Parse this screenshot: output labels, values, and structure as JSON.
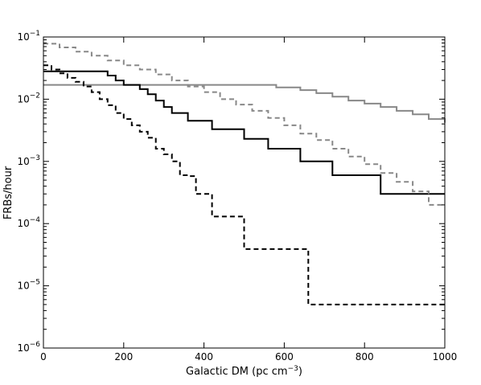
{
  "chart_data": {
    "type": "line",
    "title": "",
    "xlabel": "Galactic DM (pc cm",
    "xlabel_sup": "−3",
    "xlabel_close": ")",
    "ylabel": "FRBs/hour",
    "xlim": [
      0,
      1000
    ],
    "ylim": [
      1e-06,
      0.1
    ],
    "yscale": "log",
    "grid": false,
    "legend": "none",
    "x_ticks": [
      {
        "value": 0,
        "label": "0"
      },
      {
        "value": 200,
        "label": "200"
      },
      {
        "value": 400,
        "label": "400"
      },
      {
        "value": 600,
        "label": "600"
      },
      {
        "value": 800,
        "label": "800"
      },
      {
        "value": 1000,
        "label": "1000"
      }
    ],
    "y_ticks": [
      {
        "value": 1e-06,
        "base": "10",
        "exp": "−6"
      },
      {
        "value": 1e-05,
        "base": "10",
        "exp": "−5"
      },
      {
        "value": 0.0001,
        "base": "10",
        "exp": "−4"
      },
      {
        "value": 0.001,
        "base": "10",
        "exp": "−3"
      },
      {
        "value": 0.01,
        "base": "10",
        "exp": "−2"
      },
      {
        "value": 0.1,
        "base": "10",
        "exp": "−1"
      }
    ],
    "series": [
      {
        "color": "#888888",
        "dash": "solid",
        "x": [
          0,
          560,
          580,
          640,
          680,
          720,
          760,
          800,
          840,
          880,
          920,
          960,
          1000
        ],
        "y": [
          0.017,
          0.017,
          0.0155,
          0.014,
          0.0125,
          0.011,
          0.0095,
          0.0085,
          0.0075,
          0.0065,
          0.0057,
          0.0048,
          0.0042
        ]
      },
      {
        "color": "#000000",
        "dash": "solid",
        "x": [
          0,
          140,
          160,
          180,
          200,
          240,
          260,
          280,
          300,
          320,
          360,
          400,
          420,
          440,
          500,
          560,
          620,
          640,
          700,
          720,
          800,
          840,
          1000
        ],
        "y": [
          0.028,
          0.028,
          0.024,
          0.02,
          0.017,
          0.0145,
          0.012,
          0.0095,
          0.0075,
          0.006,
          0.0045,
          0.0045,
          0.0033,
          0.0033,
          0.0023,
          0.0016,
          0.0016,
          0.001,
          0.001,
          0.0006,
          0.0006,
          0.0003,
          0.0003
        ]
      },
      {
        "color": "#888888",
        "dash": "dashed",
        "x": [
          0,
          40,
          80,
          120,
          160,
          200,
          240,
          280,
          320,
          360,
          400,
          440,
          480,
          520,
          560,
          600,
          640,
          680,
          720,
          760,
          800,
          840,
          880,
          920,
          960,
          1000
        ],
        "y": [
          0.078,
          0.068,
          0.058,
          0.05,
          0.042,
          0.035,
          0.03,
          0.025,
          0.02,
          0.016,
          0.013,
          0.01,
          0.0082,
          0.0065,
          0.005,
          0.0038,
          0.0028,
          0.0022,
          0.0016,
          0.0012,
          0.0009,
          0.00065,
          0.00047,
          0.00033,
          0.0002,
          0.0002
        ]
      },
      {
        "color": "#000000",
        "dash": "dashed",
        "x": [
          0,
          20,
          40,
          60,
          80,
          100,
          120,
          140,
          160,
          180,
          200,
          220,
          240,
          260,
          280,
          300,
          320,
          340,
          360,
          380,
          400,
          420,
          440,
          460,
          480,
          500,
          520,
          560,
          600,
          640,
          660,
          1000
        ],
        "y": [
          0.035,
          0.03,
          0.026,
          0.022,
          0.019,
          0.016,
          0.013,
          0.01,
          0.008,
          0.006,
          0.0048,
          0.0038,
          0.003,
          0.0024,
          0.0016,
          0.0013,
          0.001,
          0.0006,
          0.00058,
          0.0003,
          0.0003,
          0.00013,
          0.00013,
          0.00013,
          0.00013,
          3.9e-05,
          3.9e-05,
          3.9e-05,
          3.9e-05,
          3.9e-05,
          5e-06,
          5e-06
        ]
      }
    ]
  }
}
